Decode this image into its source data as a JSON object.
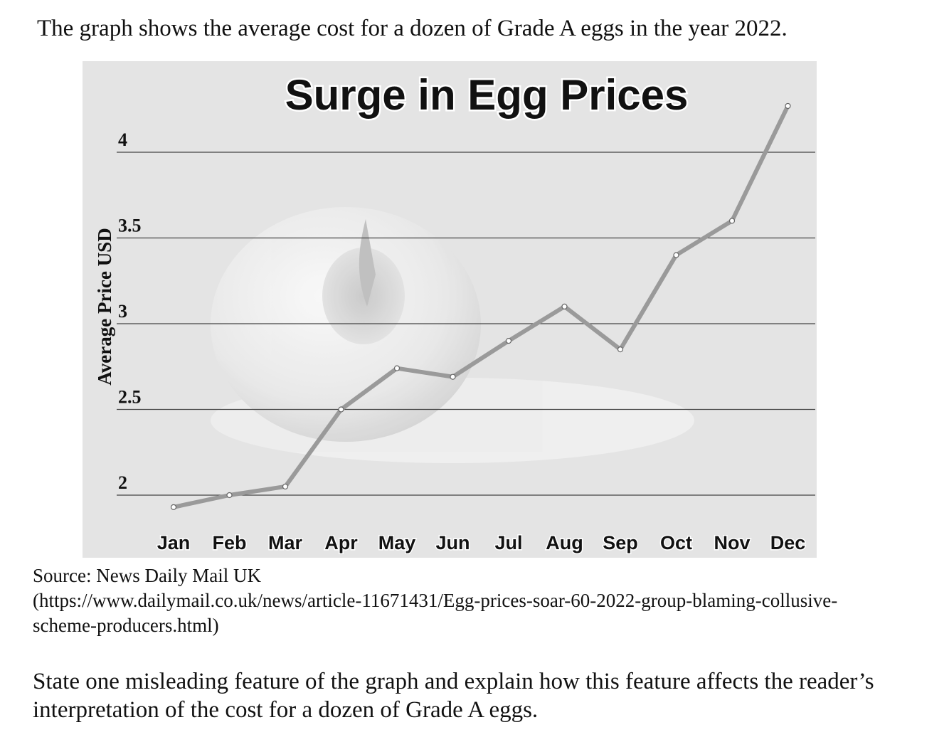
{
  "intro_text": "The graph shows the average cost for a dozen of Grade A eggs in the year 2022.",
  "source": {
    "label": "Source: News Daily Mail UK",
    "url_line1": "(https://www.dailymail.co.uk/news/article-11671431/Egg-prices-soar-60-2022-group-blaming-collusive-",
    "url_line2": "scheme-producers.html)"
  },
  "question_text": "State one misleading feature of the graph and explain how this feature affects the reader’s interpretation of the cost for a dozen of Grade A eggs.",
  "colors": {
    "line": "#9a9a9a",
    "background": "#e6e6e6",
    "gridline": "#444444"
  },
  "chart_data": {
    "type": "line",
    "title": "Surge in Egg Prices",
    "ylabel": "Average Price USD",
    "xlabel": "",
    "categories": [
      "Jan",
      "Feb",
      "Mar",
      "Apr",
      "May",
      "Jun",
      "Jul",
      "Aug",
      "Sep",
      "Oct",
      "Nov",
      "Dec"
    ],
    "values": [
      1.93,
      2.0,
      2.05,
      2.5,
      2.74,
      2.69,
      2.9,
      3.1,
      2.85,
      3.4,
      3.6,
      4.27
    ],
    "yticks": [
      {
        "value": 2,
        "label": "2"
      },
      {
        "value": 2.5,
        "label": "2.5"
      },
      {
        "value": 3,
        "label": "3"
      },
      {
        "value": 3.5,
        "label": "3.5"
      },
      {
        "value": 4,
        "label": "4"
      }
    ],
    "ylim": [
      1.75,
      4.5
    ],
    "grid": true,
    "legend": "none"
  }
}
